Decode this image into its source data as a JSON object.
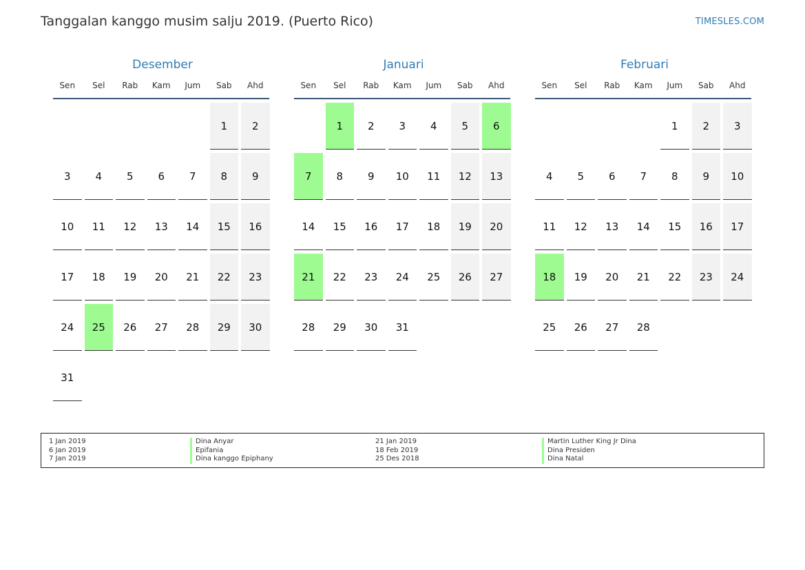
{
  "header": {
    "title": "Tanggalan kanggo musim salju 2019. (Puerto Rico)",
    "site": "TIMESLES.COM"
  },
  "weekdays": [
    "Sen",
    "Sel",
    "Rab",
    "Kam",
    "Jum",
    "Sab",
    "Ahd"
  ],
  "colors": {
    "accent": "#2f7cb3",
    "holiday": "#9dfb91",
    "weekend": "#f2f2f2",
    "rule": "#3b5775"
  },
  "months": [
    {
      "name": "Desember",
      "start_offset": 5,
      "days": 31,
      "holidays": [
        25
      ]
    },
    {
      "name": "Januari",
      "start_offset": 1,
      "days": 31,
      "holidays": [
        1,
        6,
        7,
        21
      ]
    },
    {
      "name": "Februari",
      "start_offset": 4,
      "days": 28,
      "holidays": [
        18
      ]
    }
  ],
  "legend": {
    "left": [
      {
        "date": "1 Jan 2019",
        "name": "Dina Anyar"
      },
      {
        "date": "6 Jan 2019",
        "name": "Epifania"
      },
      {
        "date": "7 Jan 2019",
        "name": "Dina kanggo Epiphany"
      }
    ],
    "right": [
      {
        "date": "21 Jan 2019",
        "name": "Martin Luther King Jr Dina"
      },
      {
        "date": "18 Feb 2019",
        "name": "Dina Presiden"
      },
      {
        "date": "25 Des 2018",
        "name": "Dina Natal"
      }
    ]
  }
}
